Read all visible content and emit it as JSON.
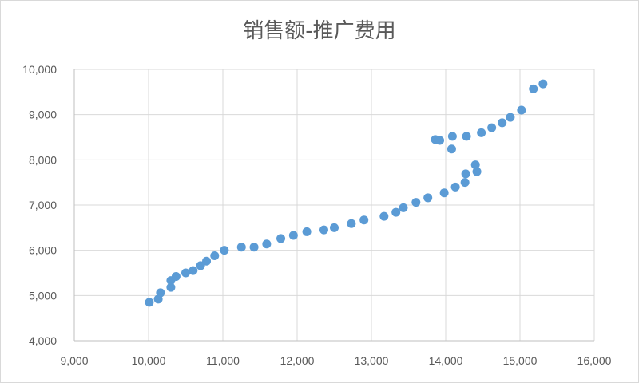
{
  "chart_data": {
    "type": "scatter",
    "title": "销售额-推广费用",
    "xlabel": "",
    "ylabel": "",
    "xlim": [
      9000,
      16000
    ],
    "ylim": [
      4000,
      10000
    ],
    "x_ticks": [
      "9,000",
      "10,000",
      "11,000",
      "12,000",
      "13,000",
      "14,000",
      "15,000",
      "16,000"
    ],
    "y_ticks": [
      "4,000",
      "5,000",
      "6,000",
      "7,000",
      "8,000",
      "9,000",
      "10,000"
    ],
    "grid": true,
    "legend": "none",
    "marker_color": "#5b9bd5",
    "series": [
      {
        "points": [
          [
            10010,
            4850
          ],
          [
            10130,
            4920
          ],
          [
            10160,
            5060
          ],
          [
            10300,
            5180
          ],
          [
            10300,
            5330
          ],
          [
            10370,
            5420
          ],
          [
            10500,
            5500
          ],
          [
            10600,
            5550
          ],
          [
            10700,
            5660
          ],
          [
            10780,
            5760
          ],
          [
            10890,
            5880
          ],
          [
            11020,
            6000
          ],
          [
            11250,
            6070
          ],
          [
            11420,
            6070
          ],
          [
            11590,
            6140
          ],
          [
            11780,
            6260
          ],
          [
            11950,
            6330
          ],
          [
            12130,
            6410
          ],
          [
            12360,
            6450
          ],
          [
            12500,
            6500
          ],
          [
            12730,
            6590
          ],
          [
            12900,
            6670
          ],
          [
            13170,
            6750
          ],
          [
            13330,
            6840
          ],
          [
            13430,
            6940
          ],
          [
            13600,
            7060
          ],
          [
            13760,
            7160
          ],
          [
            13980,
            7270
          ],
          [
            14130,
            7400
          ],
          [
            14260,
            7500
          ],
          [
            14270,
            7690
          ],
          [
            14420,
            7740
          ],
          [
            14400,
            7890
          ],
          [
            14080,
            8240
          ],
          [
            13860,
            8450
          ],
          [
            13920,
            8430
          ],
          [
            14090,
            8520
          ],
          [
            14280,
            8520
          ],
          [
            14480,
            8600
          ],
          [
            14620,
            8710
          ],
          [
            14760,
            8820
          ],
          [
            14870,
            8940
          ],
          [
            15020,
            9100
          ],
          [
            15180,
            9570
          ],
          [
            15310,
            9680
          ]
        ]
      }
    ]
  }
}
